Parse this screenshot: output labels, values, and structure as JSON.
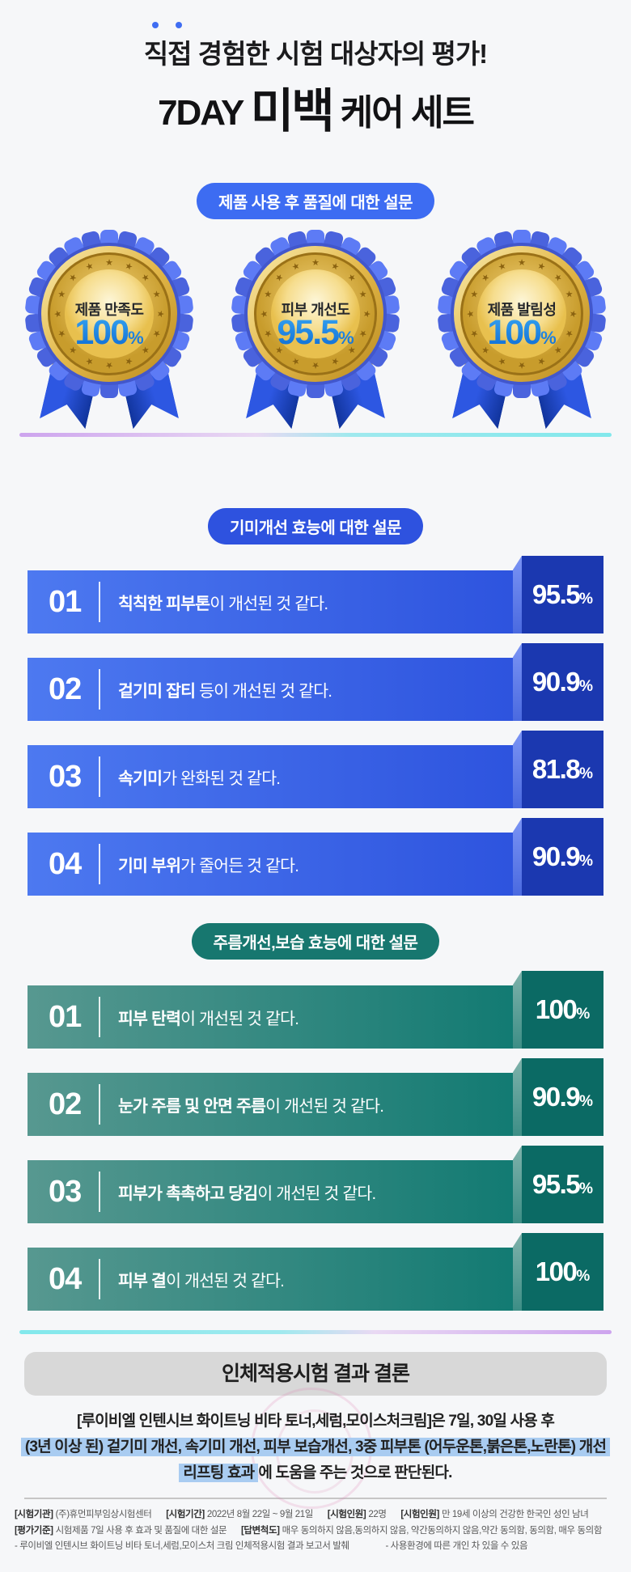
{
  "header": {
    "line1_dotted": "직접",
    "line1_rest": " 경험한 시험 대상자의 평가!",
    "line2_prefix": "7DAY ",
    "line2_em": "미백",
    "line2_suffix": " 케어 세트"
  },
  "quality_section": {
    "pill": "제품 사용 후 품질에 대한 설문",
    "medals": [
      {
        "label": "제품 만족도",
        "value": "100",
        "sign": "%"
      },
      {
        "label": "피부 개선도",
        "value": "95.5",
        "sign": "%"
      },
      {
        "label": "제품 발림성",
        "value": "100",
        "sign": "%"
      }
    ]
  },
  "spot_section": {
    "pill": "기미개선 효능에 대한 설문",
    "items": [
      {
        "num": "01",
        "bold": "칙칙한 피부톤",
        "rest": "이 개선된 것 같다.",
        "value": "95.5",
        "sign": "%"
      },
      {
        "num": "02",
        "bold": "겉기미 잡티",
        "rest": " 등이 개선된 것 같다.",
        "value": "90.9",
        "sign": "%"
      },
      {
        "num": "03",
        "bold": "속기미",
        "rest": "가 완화된 것 같다.",
        "value": "81.8",
        "sign": "%"
      },
      {
        "num": "04",
        "bold": "기미 부위",
        "rest": "가 줄어든 것 같다.",
        "value": "90.9",
        "sign": "%"
      }
    ]
  },
  "wrinkle_section": {
    "pill": "주름개선,보습 효능에 대한 설문",
    "items": [
      {
        "num": "01",
        "bold": "피부 탄력",
        "rest": "이 개선된 것 같다.",
        "value": "100",
        "sign": "%"
      },
      {
        "num": "02",
        "bold": "눈가 주름 및 안면 주름",
        "rest": "이 개선된 것 같다.",
        "value": "90.9",
        "sign": "%"
      },
      {
        "num": "03",
        "bold": "피부가 촉촉하고 당김",
        "rest": "이 개선된 것 같다.",
        "value": "95.5",
        "sign": "%"
      },
      {
        "num": "04",
        "bold": "피부 결",
        "rest": "이 개선된 것 같다.",
        "value": "100",
        "sign": "%"
      }
    ]
  },
  "conclusion": {
    "heading": "인체적용시험 결과 결론",
    "line1": "[루이비엘 인텐시브 화이트닝 비타 토너,세럼,모이스처크림]은 7일, 30일 사용 후",
    "line2_highlight": "(3년 이상 된) 겉기미 개선, 속기미 개선, 피부 보습개선, 3중 피부톤 (어두운톤,붉은톤,노란톤) 개선",
    "line3_highlight": "리프팅 효과",
    "line3_rest": "에 도움을 주는 것으로 판단된다."
  },
  "footer": {
    "line1": [
      {
        "label": "[시험기관]",
        "text": "(주)휴먼피부임상시험센터"
      },
      {
        "label": "[시험기간]",
        "text": "2022년 8월 22일 ~ 9월 21일"
      },
      {
        "label": "[시험인원]",
        "text": "22명"
      },
      {
        "label": "[시험인원]",
        "text": "만 19세 이상의 건강한 한국인 성인 남녀"
      }
    ],
    "line2": [
      {
        "label": "[평가기준]",
        "text": "시험제품 7일 사용 후 효과 및 품질에 대한 설문"
      },
      {
        "label": "[답변척도]",
        "text": "매우 동의하지 않음,동의하지 않음, 약간동의하지 않음,약간 동의함, 동의함, 매우 동의함"
      }
    ],
    "line3": [
      {
        "text": "- 루이비엘 인텐시브 화이트닝 비타 토너,세럼,모이스처 크림 인체적용시험 결과 보고서 발췌"
      },
      {
        "text": "- 사용환경에 따른 개인 차 있을 수 있음"
      }
    ]
  },
  "colors": {
    "background": "#f6f7f9",
    "pill_blue_light": "#3d6cf2",
    "pill_blue_royal": "#2e52df",
    "pill_teal": "#17776f",
    "bar_blue_gradient": [
      "#4d79f0",
      "#2d53de"
    ],
    "bar_blue_cap": "#1b38b0",
    "bar_teal_gradient": [
      "#579890",
      "#117a72"
    ],
    "bar_teal_cap": "#0b6a64",
    "medal_percent_blue": "#1287e6",
    "highlight_blue": "#a9ccf1",
    "heading_box_gray": "#d8d8d8",
    "divider_purple": "#cda4ee",
    "divider_cyan": "#82e8ec"
  },
  "chart_data": [
    {
      "type": "bar",
      "title": "제품 사용 후 품질에 대한 설문",
      "categories": [
        "제품 만족도",
        "피부 개선도",
        "제품 발림성"
      ],
      "values": [
        100,
        95.5,
        100
      ],
      "unit": "%",
      "ylim": [
        0,
        100
      ],
      "style": "award-medals"
    },
    {
      "type": "bar",
      "title": "기미개선 효능에 대한 설문",
      "categories": [
        "칙칙한 피부톤이 개선된 것 같다.",
        "겉기미 잡티 등이 개선된 것 같다.",
        "속기미가 완화된 것 같다.",
        "기미 부위가 줄어든 것 같다."
      ],
      "values": [
        95.5,
        90.9,
        81.8,
        90.9
      ],
      "unit": "%",
      "ylim": [
        0,
        100
      ],
      "style": "horizontal-ribbon-bars-blue"
    },
    {
      "type": "bar",
      "title": "주름개선,보습 효능에 대한 설문",
      "categories": [
        "피부 탄력이 개선된 것 같다.",
        "눈가 주름 및 안면 주름이 개선된 것 같다.",
        "피부가 촉촉하고 당김이 개선된 것 같다.",
        "피부 결이 개선된 것 같다."
      ],
      "values": [
        100,
        90.9,
        95.5,
        100
      ],
      "unit": "%",
      "ylim": [
        0,
        100
      ],
      "style": "horizontal-ribbon-bars-teal"
    }
  ]
}
